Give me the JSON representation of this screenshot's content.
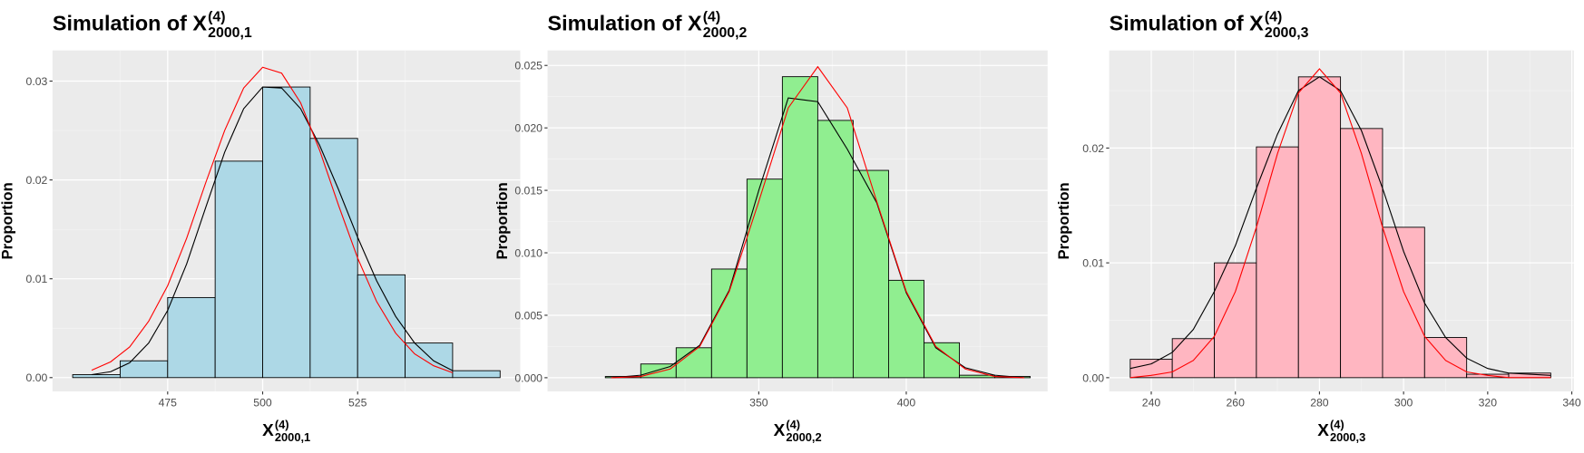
{
  "chart_data": [
    {
      "type": "histogram",
      "title": {
        "text": "Simulation of X",
        "sup": "(4)",
        "sub": "2000,1"
      },
      "x_label": {
        "text": "X",
        "sup": "(4)",
        "sub": "2000,1"
      },
      "y_label": "Proportion",
      "bins": [
        450,
        462.5,
        475,
        487.5,
        500,
        512.5,
        525,
        537.5,
        550,
        562.5
      ],
      "values": [
        0.0003,
        0.0017,
        0.0081,
        0.0219,
        0.0294,
        0.0242,
        0.0104,
        0.0035,
        0.0007
      ],
      "color": "#add8e6",
      "xlim": [
        444.7,
        567.8
      ],
      "ylim": [
        -0.0014,
        0.0331
      ],
      "xticks": [
        475,
        500,
        525
      ],
      "yticks": [
        {
          "value": 0,
          "label": "0.00"
        },
        {
          "value": 0.01,
          "label": "0.01"
        },
        {
          "value": 0.02,
          "label": "0.02"
        },
        {
          "value": 0.03,
          "label": "0.03"
        }
      ],
      "grid": true,
      "curves": [
        {
          "color": "#000000",
          "x": [
            455,
            460,
            465,
            470,
            475,
            480,
            485,
            490,
            495,
            500,
            505,
            510,
            515,
            520,
            525,
            530,
            535,
            540,
            545,
            550
          ],
          "values": [
            0.0003,
            0.0006,
            0.0015,
            0.0035,
            0.0068,
            0.0115,
            0.0172,
            0.0228,
            0.0272,
            0.0294,
            0.0293,
            0.0272,
            0.0235,
            0.019,
            0.0142,
            0.0098,
            0.0062,
            0.0035,
            0.0017,
            0.0007
          ]
        },
        {
          "color": "#ff0000",
          "x": [
            455,
            460,
            465,
            470,
            475,
            480,
            485,
            490,
            495,
            500,
            505,
            510,
            515,
            520,
            525,
            530,
            535,
            540,
            545,
            550
          ],
          "values": [
            0.00075,
            0.0016,
            0.0031,
            0.0057,
            0.0093,
            0.0141,
            0.0197,
            0.025,
            0.0293,
            0.0314,
            0.0308,
            0.0278,
            0.023,
            0.0174,
            0.0121,
            0.0077,
            0.0045,
            0.0024,
            0.0012,
            0.0005
          ]
        }
      ]
    },
    {
      "type": "histogram",
      "title": {
        "text": "Simulation of X",
        "sup": "(4)",
        "sub": "2000,2"
      },
      "x_label": {
        "text": "X",
        "sup": "(4)",
        "sub": "2000,2"
      },
      "y_label": "Proportion",
      "bins": [
        298,
        310,
        322,
        334,
        346,
        358,
        370,
        382,
        394,
        406,
        418,
        430,
        442
      ],
      "values": [
        0.0001,
        0.0011,
        0.0024,
        0.0087,
        0.0159,
        0.0241,
        0.0206,
        0.0166,
        0.0078,
        0.0028,
        0.0002,
        0.0001
      ],
      "color": "#90ee90",
      "xlim": [
        278.4,
        447.9
      ],
      "ylim": [
        -0.0011,
        0.0262
      ],
      "xticks": [
        350,
        400
      ],
      "yticks": [
        {
          "value": 0,
          "label": "0.000"
        },
        {
          "value": 0.005,
          "label": "0.005"
        },
        {
          "value": 0.01,
          "label": "0.010"
        },
        {
          "value": 0.015,
          "label": "0.015"
        },
        {
          "value": 0.02,
          "label": "0.020"
        },
        {
          "value": 0.025,
          "label": "0.025"
        }
      ],
      "grid": true,
      "curves": [
        {
          "color": "#000000",
          "x": [
            300,
            310,
            320,
            330,
            340,
            350,
            360,
            370,
            380,
            390,
            400,
            410,
            420,
            430,
            440
          ],
          "values": [
            0,
            0.0002,
            0.0009,
            0.0026,
            0.007,
            0.015,
            0.0224,
            0.0221,
            0.0183,
            0.014,
            0.0068,
            0.0024,
            0.0008,
            0.0002,
            0
          ]
        },
        {
          "color": "#ff0000",
          "x": [
            300,
            310,
            320,
            330,
            340,
            350,
            360,
            370,
            380,
            390,
            400,
            410,
            420,
            430,
            440
          ],
          "values": [
            0,
            0.0001,
            0.0007,
            0.0025,
            0.0069,
            0.0141,
            0.0216,
            0.0249,
            0.0216,
            0.0141,
            0.0069,
            0.0025,
            0.0007,
            0.0001,
            0
          ]
        }
      ]
    },
    {
      "type": "histogram",
      "title": {
        "text": "Simulation of X",
        "sup": "(4)",
        "sub": "2000,3"
      },
      "x_label": {
        "text": "X",
        "sup": "(4)",
        "sub": "2000,3"
      },
      "y_label": "Proportion",
      "bins": [
        235,
        245,
        255,
        265,
        275,
        285,
        295,
        305,
        315,
        325,
        335
      ],
      "values": [
        0.0016,
        0.0034,
        0.01,
        0.0201,
        0.0262,
        0.0217,
        0.0131,
        0.0035,
        0.0003,
        0.0004
      ],
      "color": "#ffb6c1",
      "xlim": [
        230,
        340.5
      ],
      "ylim": [
        -0.0012,
        0.0285
      ],
      "xticks": [
        240,
        260,
        280,
        300,
        320,
        340
      ],
      "yticks": [
        {
          "value": 0,
          "label": "0.00"
        },
        {
          "value": 0.01,
          "label": "0.01"
        },
        {
          "value": 0.02,
          "label": "0.02"
        }
      ],
      "grid": true,
      "curves": [
        {
          "color": "#000000",
          "x": [
            235,
            240,
            245,
            250,
            255,
            260,
            265,
            270,
            275,
            280,
            285,
            290,
            295,
            300,
            305,
            310,
            315,
            320,
            325,
            330,
            335
          ],
          "values": [
            0.0008,
            0.0012,
            0.0022,
            0.0042,
            0.0075,
            0.0115,
            0.0165,
            0.0212,
            0.025,
            0.0262,
            0.025,
            0.0215,
            0.0165,
            0.011,
            0.0065,
            0.0035,
            0.0017,
            0.0008,
            0.0004,
            0.0003,
            0.0002
          ]
        },
        {
          "color": "#ff0000",
          "x": [
            235,
            240,
            245,
            250,
            255,
            260,
            265,
            270,
            275,
            280,
            285,
            290,
            295,
            300,
            305,
            310,
            315,
            320,
            325,
            330,
            335
          ],
          "values": [
            0,
            0.0002,
            0.0005,
            0.0015,
            0.0036,
            0.0075,
            0.0131,
            0.0195,
            0.0248,
            0.0269,
            0.0248,
            0.0195,
            0.0131,
            0.0075,
            0.0036,
            0.0015,
            0.0005,
            0.0002,
            0,
            0,
            0
          ]
        }
      ]
    }
  ]
}
